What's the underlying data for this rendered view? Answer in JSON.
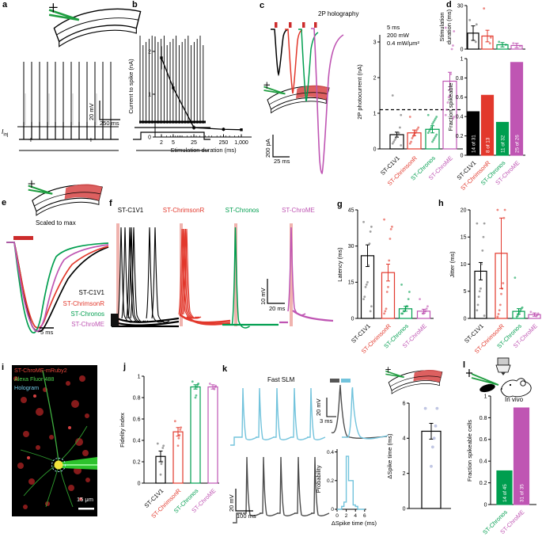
{
  "opsins": {
    "names": [
      "ST-C1V1",
      "ST-ChrimsonR",
      "ST-Chronos",
      "ST-ChroME"
    ],
    "colors": [
      "#000000",
      "#e2382c",
      "#009e4f",
      "#bf55b3"
    ]
  },
  "panel_labels": {
    "a": "a",
    "b": "b",
    "c": "c",
    "d": "d",
    "e": "e",
    "f": "f",
    "g": "g",
    "h": "h",
    "i": "i",
    "j": "j",
    "k": "k",
    "l": "l"
  },
  "panel_a": {
    "iinj_main": "I",
    "iinj_sub": "inj",
    "plus": "+",
    "scale_v": "20 mV",
    "scale_h": "250 ms"
  },
  "panel_c": {
    "scale_v": "200 pA",
    "scale_h": "25 ms"
  },
  "panel_e": {
    "caption": "Scaled to max",
    "scale_h": "5 ms"
  },
  "panel_f": {
    "scale_v": "10 mV",
    "scale_h": "20 ms"
  },
  "panel_i": {
    "labels": [
      "ST-ChroME-mRuby2",
      "Alexa Fluor 488",
      "Hologram"
    ],
    "label_colors": [
      "#e8453a",
      "#4ed34e",
      "#74cdea"
    ],
    "scale": "15 μm"
  },
  "panel_k": {
    "caption": "Fast SLM",
    "scale_v_main": "20 mV",
    "scale_h_main": "100 ms",
    "scale_v_inset": "20 mV",
    "scale_h_inset": "3 ms"
  },
  "chart_data": [
    {
      "id": "b",
      "type": "line",
      "xlabel": "Stimulation duration (ms)",
      "ylabel": "Current to spike (nA)",
      "xscale": "log",
      "x": [
        2,
        5,
        25,
        250,
        1000
      ],
      "xticklabels": [
        "2",
        "5",
        "25",
        "250",
        "1,000"
      ],
      "y": [
        1.85,
        1.15,
        0.22,
        0.18,
        0.17
      ],
      "yerr": [
        0.27,
        0.12,
        0.05,
        0.04,
        0.03
      ],
      "ylim": [
        0,
        2.35
      ],
      "yticks": [
        0,
        1,
        2
      ]
    },
    {
      "id": "c",
      "type": "bar",
      "title": "2P holography",
      "conditions": [
        "5 ms",
        "200 mW",
        "0.4 mW/μm²"
      ],
      "ylabel": "2P photocurrent (nA)",
      "categories": [
        "ST-C1V1",
        "ST-ChrimsonR",
        "ST-Chronos",
        "ST-ChroME"
      ],
      "values": [
        0.4,
        0.45,
        0.55,
        1.9
      ],
      "errors": [
        0.07,
        0.08,
        0.1,
        0.25
      ],
      "ylim": [
        0,
        3.2
      ],
      "yticks": [
        0,
        1,
        2,
        3
      ],
      "dashed_line": 1.1,
      "points": [
        [
          1.5,
          0.95,
          0.6,
          0.45,
          0.4,
          0.35,
          0.3,
          0.25,
          0.2,
          0.15,
          0.1
        ],
        [
          0.9,
          0.6,
          0.55,
          0.5,
          0.45,
          0.4,
          0.35,
          0.3,
          0.2,
          0.15
        ],
        [
          0.95,
          0.9,
          0.85,
          0.8,
          0.75,
          0.7,
          0.6,
          0.55,
          0.5,
          0.45,
          0.4,
          0.35,
          0.3,
          0.25,
          0.2
        ],
        [
          3.4,
          3.3,
          2.9,
          2.8,
          2.1,
          1.5,
          1.45,
          1.3,
          1.1,
          0.95,
          0.9,
          0.85
        ]
      ]
    },
    {
      "id": "d_duration",
      "type": "bar",
      "ylabel": "Stimulation duration (ms)",
      "ylabel_lines": [
        "Stimulation",
        "duration (ms)"
      ],
      "values": [
        11,
        9,
        3,
        2.5
      ],
      "errors": [
        5,
        4,
        1.5,
        1.5
      ],
      "ylim": [
        0,
        30
      ],
      "yticks": [
        0,
        30
      ],
      "points": [
        [
          20,
          17,
          5
        ],
        [
          28,
          8,
          4
        ],
        [
          5,
          3
        ],
        [
          4,
          2
        ]
      ]
    },
    {
      "id": "d_fraction",
      "type": "bar",
      "ylabel": "Fraction spikeable",
      "categories": [
        "ST-C1V1",
        "ST-ChrimsonR",
        "ST-Chronos",
        "ST-ChroME"
      ],
      "values": [
        0.45,
        0.62,
        0.34,
        0.96
      ],
      "counts": [
        "14 of 31",
        "8 of 13",
        "11 of 32",
        "25 of 26"
      ],
      "ylim": [
        0,
        1
      ],
      "yticks": [
        0,
        0.2,
        0.4,
        0.6,
        0.8,
        1
      ]
    },
    {
      "id": "g",
      "type": "bar",
      "ylabel": "Latency (ms)",
      "categories": [
        "ST-C1V1",
        "ST-ChrimsonR",
        "ST-Chronos",
        "ST-ChroME"
      ],
      "values": [
        26,
        19,
        4,
        3
      ],
      "errors": [
        4.5,
        3.5,
        1,
        0.8
      ],
      "ylim": [
        0,
        45
      ],
      "yticks": [
        0,
        15,
        30,
        45
      ],
      "points": [
        [
          40,
          38,
          36,
          31,
          22,
          15,
          14,
          13,
          9,
          8,
          5,
          3
        ],
        [
          41,
          38,
          37,
          33,
          24,
          13,
          11,
          4,
          3,
          2
        ],
        [
          14,
          11,
          8,
          5,
          5,
          4,
          3,
          3,
          2,
          2
        ],
        [
          8,
          5,
          4,
          3,
          3,
          2,
          2
        ]
      ]
    },
    {
      "id": "h",
      "type": "bar",
      "ylabel": "Jitter (ms)",
      "categories": [
        "ST-C1V1",
        "ST-ChrimsonR",
        "ST-Chronos",
        "ST-ChroME"
      ],
      "values": [
        8.7,
        12,
        1.3,
        0.7
      ],
      "errors": [
        1.6,
        6.5,
        0.5,
        0.3
      ],
      "ylim": [
        0,
        20
      ],
      "yticks": [
        0,
        5,
        10,
        15,
        20
      ],
      "points": [
        [
          17.5,
          17.5,
          15,
          12.5,
          10,
          5.5,
          5,
          4,
          2.5,
          1.5,
          0.5
        ],
        [
          20,
          20,
          18.5,
          6.5,
          5.5,
          4.5,
          2.5,
          1.5,
          0.8,
          0.3
        ],
        [
          7.5,
          2,
          1.8,
          1.5,
          1.2,
          0.8,
          0.5,
          0.3
        ],
        [
          1.2,
          0.9,
          0.6,
          0.4
        ]
      ]
    },
    {
      "id": "j",
      "type": "bar",
      "ylabel": "Fidelity index",
      "categories": [
        "ST-C1V1",
        "ST-ChrimsonR",
        "ST-Chronos",
        "ST-ChroME"
      ],
      "values": [
        0.25,
        0.48,
        0.9,
        0.9
      ],
      "errors": [
        0.05,
        0.04,
        0.02,
        0.02
      ],
      "ylim": [
        0,
        1
      ],
      "yticks": [
        0,
        0.2,
        0.4,
        0.6,
        0.8,
        1
      ],
      "points": [
        [
          0.37,
          0.35,
          0.33,
          0.2,
          0.18,
          0.08
        ],
        [
          0.58,
          0.52,
          0.5,
          0.45,
          0.42,
          0.35
        ],
        [
          0.95,
          0.93,
          0.92,
          0.9,
          0.82,
          0.8
        ],
        [
          0.93,
          0.91,
          0.9,
          0.88
        ]
      ]
    },
    {
      "id": "k_hist",
      "type": "histogram",
      "xlabel": "ΔSpike time (ms)",
      "ylabel": "Probability",
      "bin_edges": [
        0,
        0.5,
        1,
        1.5,
        2,
        2.5,
        3,
        3.5,
        4,
        4.5,
        5,
        5.5,
        6
      ],
      "probabilities": [
        0,
        0,
        0.02,
        0.05,
        0.37,
        0.2,
        0.2,
        0.03,
        0.02,
        0,
        0,
        0
      ],
      "ylim": [
        0,
        0.42
      ],
      "yticks": [
        0,
        0.2,
        0.4
      ],
      "xticks": [
        0,
        2,
        4,
        6
      ]
    },
    {
      "id": "k_dspike",
      "type": "bar",
      "ylabel": "ΔSpike time (ms)",
      "values": [
        4.4
      ],
      "errors": [
        0.45
      ],
      "ylim": [
        0,
        6
      ],
      "yticks": [
        0,
        2,
        4,
        6
      ],
      "points": [
        [
          5.7,
          5.7,
          4.7,
          4,
          3.5,
          2.4
        ]
      ],
      "point_color": "#96a0d0"
    },
    {
      "id": "l",
      "type": "bar",
      "ylabel": "Fraction spikeable cells",
      "annotation": "In vivo",
      "categories": [
        "ST-Chronos",
        "ST-ChroME"
      ],
      "values": [
        0.31,
        0.89
      ],
      "counts": [
        "14 of 45",
        "31 of 35"
      ],
      "ylim": [
        0,
        1
      ],
      "yticks": [
        0,
        0.2,
        0.4,
        0.6,
        0.8,
        1
      ]
    }
  ]
}
